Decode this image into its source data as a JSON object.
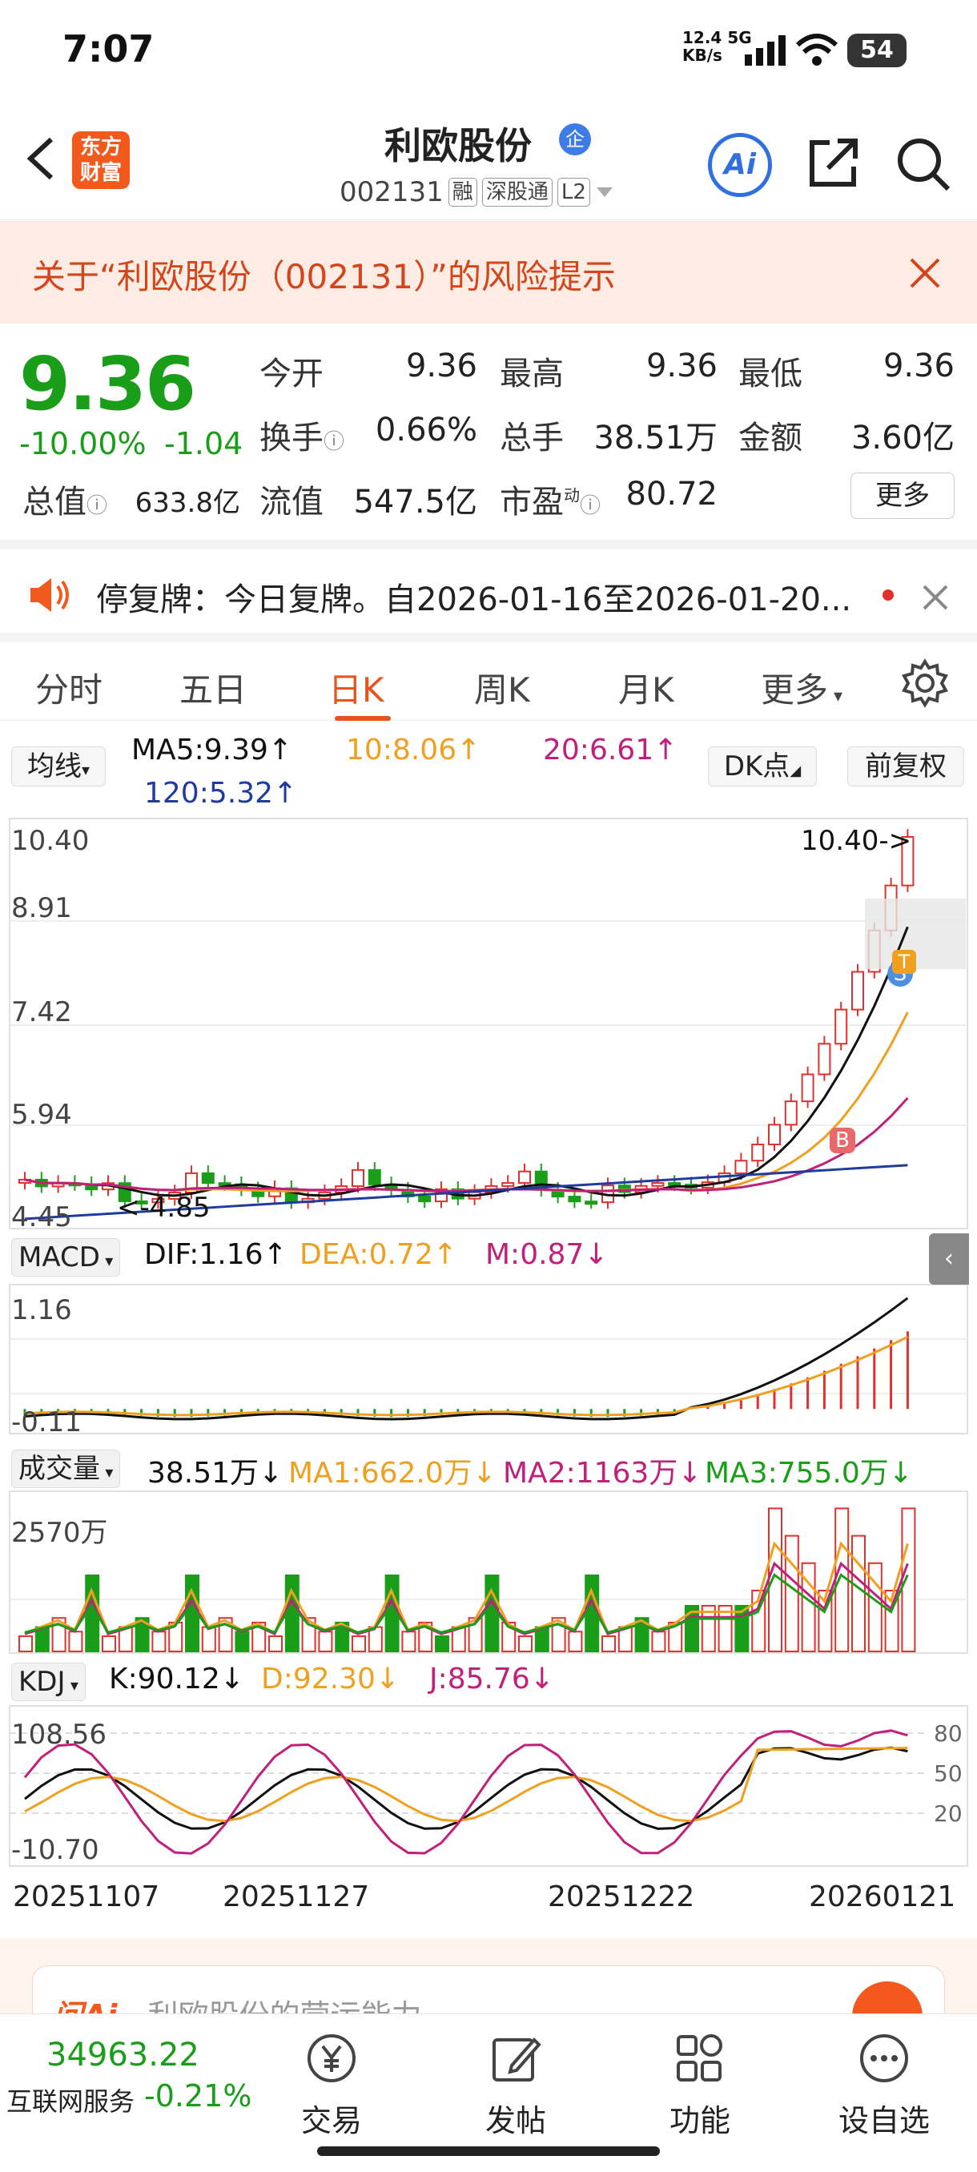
{
  "status_bar": {
    "time": "7:07",
    "net_speed": "12.4",
    "net_unit": "KB/s",
    "net_type": "5G",
    "battery": "54"
  },
  "header": {
    "app_logo": "东方\n财富",
    "stock_name": "利欧股份",
    "badge": "企",
    "code": "002131",
    "tags": [
      "融",
      "深股通",
      "L2"
    ],
    "ai_label": "Ai"
  },
  "risk_banner": {
    "text": "关于“利欧股份（002131）”的风险提示"
  },
  "quote": {
    "price": "9.36",
    "change_pct": "-10.00%",
    "change": "-1.04",
    "open_label": "今开",
    "open": "9.36",
    "high_label": "最高",
    "high": "9.36",
    "low_label": "最低",
    "low": "9.36",
    "turnover_label": "换手",
    "turnover": "0.66%",
    "volume_label": "总手",
    "volume": "38.51万",
    "amount_label": "金额",
    "amount": "3.60亿",
    "mcap_label": "总值",
    "mcap": "633.8亿",
    "float_label": "流值",
    "float": "547.5亿",
    "pe_label": "市盈",
    "pe_sup": "动",
    "pe": "80.72",
    "more": "更多"
  },
  "notice": {
    "text": "停复牌：今日复牌。自2026-01-16至2026-01-20..."
  },
  "tabs": [
    {
      "label": "分时"
    },
    {
      "label": "五日"
    },
    {
      "label": "日K"
    },
    {
      "label": "周K"
    },
    {
      "label": "月K"
    },
    {
      "label": "更多"
    }
  ],
  "ma_bar": {
    "selector": "均线",
    "ma5": "MA5:9.39↑",
    "ma10": "10:8.06↑",
    "ma20": "20:6.61↑",
    "ma120": "120:5.32↑",
    "dk": "DK点",
    "adjust": "前复权"
  },
  "chart_data": {
    "type": "candlestick",
    "price_axis": [
      "10.40",
      "8.91",
      "7.42",
      "5.94",
      "4.45"
    ],
    "annotations": {
      "high": "10.40->",
      "low": "<-4.85",
      "markers": [
        "T",
        "S",
        "B"
      ]
    },
    "colors": {
      "up": "#e0312c",
      "down": "#1a9e1a",
      "ma5": "#111111",
      "ma10": "#f0a020",
      "ma20": "#c0207a",
      "ma120": "#1f3b9e"
    },
    "dates": [
      "20251107",
      "20251127",
      "20251222",
      "20260121"
    ]
  },
  "macd": {
    "selector": "MACD",
    "dif": "DIF:1.16↑",
    "dea": "DEA:0.72↑",
    "m": "M:0.87↓",
    "top": "1.16",
    "bottom": "-0.11"
  },
  "vol": {
    "selector": "成交量",
    "v": "38.51万↓",
    "ma1": "MA1:662.0万↓",
    "ma2": "MA2:1163万↓",
    "ma3": "MA3:755.0万↓",
    "top": "2570万"
  },
  "kdj": {
    "selector": "KDJ",
    "k": "K:90.12↓",
    "d": "D:92.30↓",
    "j": "J:85.76↓",
    "top": "108.56",
    "bottom": "-10.70",
    "r80": "80",
    "r50": "50",
    "r20": "20"
  },
  "ai_banner": {
    "logo": "问Ai",
    "text": "利欧股份的营运能力"
  },
  "bottom_bar": {
    "index_value": "34963.22",
    "index_name": "互联网服务",
    "index_change": "-0.21%",
    "items": [
      {
        "label": "交易"
      },
      {
        "label": "发帖"
      },
      {
        "label": "功能"
      },
      {
        "label": "设自选"
      }
    ]
  }
}
